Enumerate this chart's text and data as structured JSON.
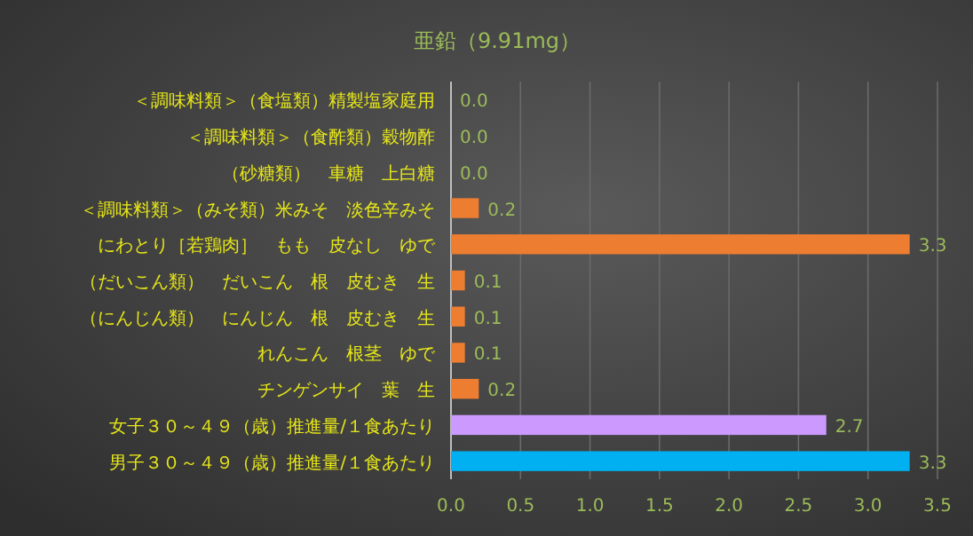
{
  "chart_data": {
    "type": "bar",
    "orientation": "horizontal",
    "title": "亜鉛（9.91mg）",
    "categories": [
      "＜調味料類＞（食塩類）精製塩家庭用",
      "＜調味料類＞（食酢類）穀物酢",
      "（砂糖類）　車糖　上白糖",
      "＜調味料類＞（みそ類）米みそ　淡色辛みそ",
      "にわとり［若鶏肉］　もも　皮なし　ゆで",
      "（だいこん類）　だいこん　根　皮むき　生",
      "（にんじん類）　にんじん　根　皮むき　生",
      "れんこん　根茎　ゆで",
      "チンゲンサイ　葉　生",
      "女子３０～４９（歳）推進量/１食あたり",
      "男子３０～４９（歳）推進量/１食あたり"
    ],
    "values": [
      0,
      0,
      0,
      0.2,
      3.3,
      0.1,
      0.1,
      0.1,
      0.2,
      2.7,
      3.3
    ],
    "value_labels": [
      "0.0",
      "0.0",
      "0.0",
      "0.2",
      "3.3",
      "0.1",
      "0.1",
      "0.1",
      "0.2",
      "2.7",
      "3.3"
    ],
    "colors": [
      "#ed7d31",
      "#ed7d31",
      "#ed7d31",
      "#ed7d31",
      "#ed7d31",
      "#ed7d31",
      "#ed7d31",
      "#ed7d31",
      "#ed7d31",
      "#cc99ff",
      "#00b0f0"
    ],
    "xlim": [
      0,
      3.5
    ],
    "xticks": [
      {
        "value": 0,
        "label": "0.0"
      },
      {
        "value": 0.5,
        "label": "0.5"
      },
      {
        "value": 1,
        "label": "1.0"
      },
      {
        "value": 1.5,
        "label": "1.5"
      },
      {
        "value": 2,
        "label": "2.0"
      },
      {
        "value": 2.5,
        "label": "2.5"
      },
      {
        "value": 3,
        "label": "3.0"
      },
      {
        "value": 3.5,
        "label": "3.5"
      }
    ],
    "grid": "x"
  }
}
